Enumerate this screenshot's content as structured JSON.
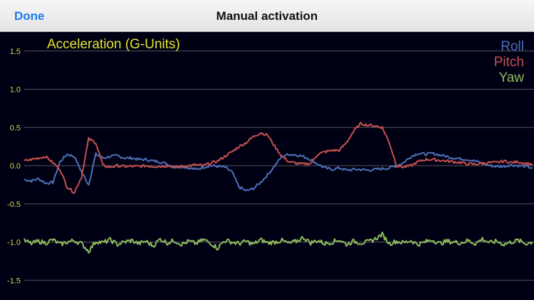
{
  "navbar": {
    "done_label": "Done",
    "title": "Manual activation"
  },
  "chart_data": {
    "type": "line",
    "title": "Acceleration (G-Units)",
    "xlabel": "",
    "ylabel": "",
    "ylim": [
      -1.7,
      1.7
    ],
    "yticks": [
      "1.5",
      "1.0",
      "0.5",
      "0.0",
      "-0.5",
      "-1.0",
      "-1.5"
    ],
    "ytick_values": [
      1.5,
      1.0,
      0.5,
      0.0,
      -0.5,
      -1.0,
      -1.5
    ],
    "grid": true,
    "legend_position": "top-right",
    "x": [
      0,
      10,
      20,
      30,
      40,
      50,
      60,
      70,
      80,
      90,
      100,
      110,
      120,
      130,
      140,
      150,
      160,
      170,
      180,
      190,
      200,
      210,
      220,
      230,
      240,
      250,
      260,
      270,
      280,
      290,
      300,
      310,
      320,
      330,
      340,
      350,
      360,
      370,
      380,
      390,
      400,
      410,
      420,
      430,
      440,
      450,
      460,
      470,
      480,
      490,
      500,
      510,
      520,
      530,
      540,
      550,
      560,
      570,
      580,
      590,
      600,
      610,
      620,
      630,
      640,
      650,
      660,
      670,
      680,
      690,
      700,
      710
    ],
    "series": [
      {
        "name": "Roll",
        "color": "#4f70b8",
        "values": [
          -0.18,
          -0.2,
          -0.17,
          -0.23,
          -0.22,
          0.05,
          0.15,
          0.12,
          -0.08,
          -0.25,
          0.15,
          0.1,
          0.12,
          0.13,
          0.1,
          0.1,
          0.08,
          0.08,
          0.06,
          0.05,
          0.02,
          -0.02,
          -0.01,
          -0.03,
          -0.05,
          -0.02,
          0.0,
          -0.01,
          -0.02,
          -0.08,
          -0.28,
          -0.33,
          -0.3,
          -0.22,
          -0.12,
          0.0,
          0.12,
          0.15,
          0.14,
          0.12,
          0.08,
          0.02,
          -0.03,
          -0.05,
          -0.03,
          -0.06,
          -0.05,
          -0.05,
          -0.06,
          -0.05,
          -0.04,
          -0.03,
          0.0,
          0.04,
          0.12,
          0.16,
          0.15,
          0.16,
          0.14,
          0.12,
          0.1,
          0.09,
          0.08,
          0.06,
          0.03,
          0.0,
          -0.01,
          -0.01,
          0.01,
          0.0,
          -0.01,
          -0.03
        ]
      },
      {
        "name": "Pitch",
        "color": "#c85050",
        "values": [
          0.06,
          0.08,
          0.1,
          0.12,
          0.04,
          -0.05,
          -0.28,
          -0.35,
          -0.15,
          0.35,
          0.3,
          0.0,
          -0.02,
          0.0,
          -0.01,
          -0.01,
          -0.01,
          0.0,
          -0.01,
          -0.01,
          0.0,
          -0.02,
          -0.01,
          0.0,
          0.01,
          0.0,
          0.03,
          0.06,
          0.12,
          0.18,
          0.25,
          0.3,
          0.38,
          0.43,
          0.4,
          0.25,
          0.12,
          0.05,
          0.03,
          0.02,
          0.03,
          0.15,
          0.18,
          0.2,
          0.2,
          0.3,
          0.45,
          0.55,
          0.53,
          0.52,
          0.5,
          0.3,
          0.0,
          -0.02,
          0.0,
          0.05,
          0.08,
          0.08,
          0.07,
          0.06,
          0.05,
          0.04,
          0.02,
          0.02,
          0.03,
          0.04,
          0.04,
          0.06,
          0.04,
          0.05,
          0.03,
          0.02
        ]
      },
      {
        "name": "Yaw",
        "color": "#8cbc5a",
        "values": [
          -0.98,
          -1.02,
          -0.99,
          -1.01,
          -0.97,
          -1.03,
          -1.0,
          -0.98,
          -1.02,
          -1.12,
          -0.99,
          -1.01,
          -0.97,
          -1.03,
          -1.0,
          -0.98,
          -1.02,
          -0.99,
          -1.05,
          -0.96,
          -1.01,
          -0.98,
          -1.03,
          -0.99,
          -1.02,
          -0.97,
          -1.01,
          -1.08,
          -0.98,
          -1.0,
          -1.02,
          -0.99,
          -1.03,
          -0.97,
          -1.01,
          -1.0,
          -0.98,
          -1.02,
          -0.99,
          -0.94,
          -1.01,
          -0.98,
          -1.02,
          -1.0,
          -0.97,
          -1.03,
          -0.99,
          -1.01,
          -1.0,
          -0.96,
          -0.9,
          -1.02,
          -0.99,
          -1.01,
          -0.98,
          -1.03,
          -1.0,
          -0.97,
          -1.02,
          -0.99,
          -1.0,
          -1.01,
          -0.98,
          -1.02,
          -0.96,
          -1.01,
          -0.99,
          -1.03,
          -1.0,
          -0.98,
          -1.02,
          -1.0
        ]
      }
    ]
  }
}
